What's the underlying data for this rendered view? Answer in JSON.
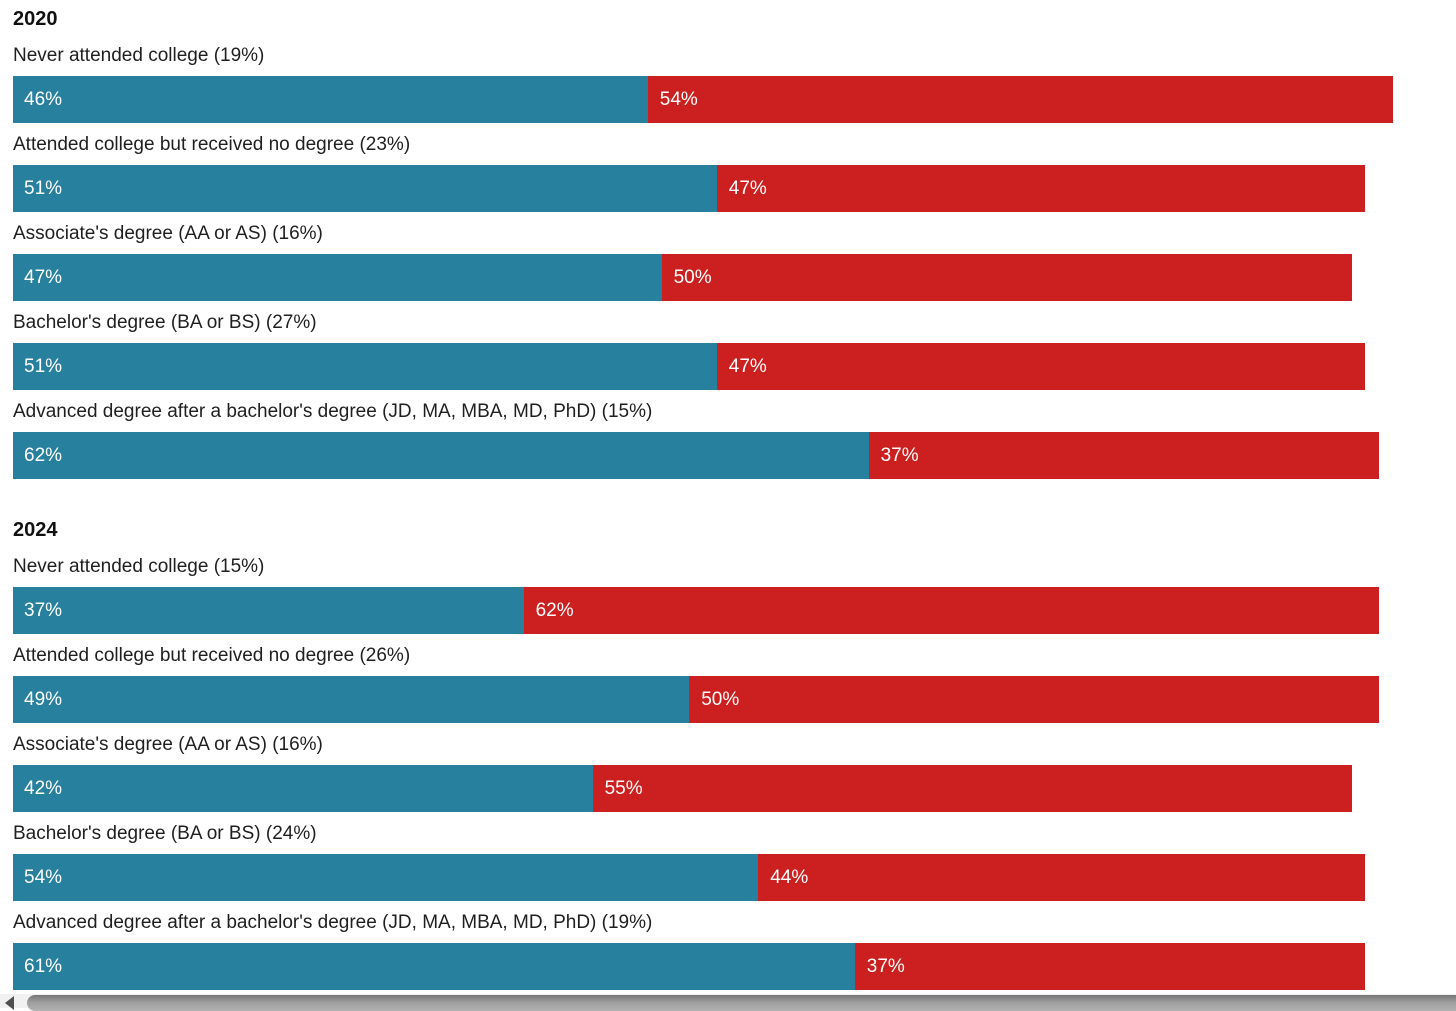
{
  "page": {
    "background": "#ffffff"
  },
  "chart_data": {
    "type": "bar",
    "orientation": "horizontal",
    "stacked": true,
    "value_unit": "percent",
    "axis_max": 100,
    "grid": false,
    "legend": "none",
    "colors": {
      "blue_segment": "#27809e",
      "red_segment": "#cc2020",
      "label_text": "#1f1f1f",
      "bar_value_text": "#ffffff"
    },
    "groups": [
      {
        "year": "2020",
        "rows": [
          {
            "label": "Never attended college (19%)",
            "blue": 46,
            "blue_label": "46%",
            "red": 54,
            "red_label": "54%"
          },
          {
            "label": "Attended college but received no degree (23%)",
            "blue": 51,
            "blue_label": "51%",
            "red": 47,
            "red_label": "47%"
          },
          {
            "label": "Associate's degree (AA or AS) (16%)",
            "blue": 47,
            "blue_label": "47%",
            "red": 50,
            "red_label": "50%"
          },
          {
            "label": "Bachelor's degree (BA or BS) (27%)",
            "blue": 51,
            "blue_label": "51%",
            "red": 47,
            "red_label": "47%"
          },
          {
            "label": "Advanced degree after a bachelor's degree (JD, MA, MBA, MD, PhD) (15%)",
            "blue": 62,
            "blue_label": "62%",
            "red": 37,
            "red_label": "37%"
          }
        ]
      },
      {
        "year": "2024",
        "rows": [
          {
            "label": "Never attended college (15%)",
            "blue": 37,
            "blue_label": "37%",
            "red": 62,
            "red_label": "62%"
          },
          {
            "label": "Attended college but received no degree (26%)",
            "blue": 49,
            "blue_label": "49%",
            "red": 50,
            "red_label": "50%"
          },
          {
            "label": "Associate's degree (AA or AS) (16%)",
            "blue": 42,
            "blue_label": "42%",
            "red": 55,
            "red_label": "55%"
          },
          {
            "label": "Bachelor's degree (BA or BS) (24%)",
            "blue": 54,
            "blue_label": "54%",
            "red": 44,
            "red_label": "44%"
          },
          {
            "label": "Advanced degree after a bachelor's degree (JD, MA, MBA, MD, PhD) (19%)",
            "blue": 61,
            "blue_label": "61%",
            "red": 37,
            "red_label": "37%"
          }
        ]
      }
    ]
  },
  "scrollbar": {
    "orientation": "horizontal",
    "left_arrow_icon": "scroll-left-arrow"
  }
}
